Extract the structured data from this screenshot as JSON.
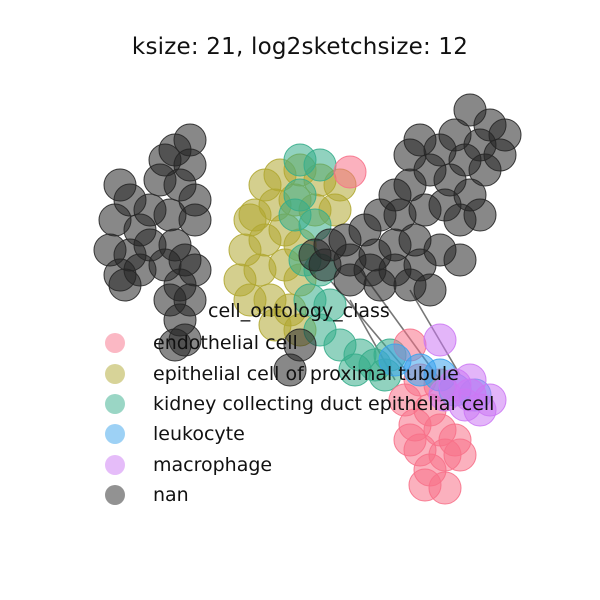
{
  "chart_data": {
    "type": "scatter",
    "title": "ksize: 21, log2sketchsize: 12",
    "xlabel": "",
    "ylabel": "",
    "axes_visible": false,
    "grid": false,
    "legend": {
      "title": "cell_ontology_class",
      "placement": "center",
      "entries": [
        {
          "label": "endothelial cell",
          "color": "#f77189"
        },
        {
          "label": "epithelial cell of proximal tubule",
          "color": "#b0a731"
        },
        {
          "label": "kidney collecting duct epithelial cell",
          "color": "#36ad8b"
        },
        {
          "label": "leukocyte",
          "color": "#3ba3ec"
        },
        {
          "label": "macrophage",
          "color": "#cc79f4"
        },
        {
          "label": "nan",
          "color": "#262626"
        }
      ]
    },
    "series": [
      {
        "name": "epithelial cell of proximal tubule",
        "color": "#b0a731",
        "points": [
          [
            265,
            185
          ],
          [
            280,
            175
          ],
          [
            300,
            170
          ],
          [
            320,
            180
          ],
          [
            340,
            185
          ],
          [
            255,
            215
          ],
          [
            275,
            205
          ],
          [
            295,
            200
          ],
          [
            315,
            210
          ],
          [
            335,
            210
          ],
          [
            245,
            250
          ],
          [
            265,
            240
          ],
          [
            285,
            230
          ],
          [
            300,
            245
          ],
          [
            240,
            280
          ],
          [
            260,
            270
          ],
          [
            285,
            265
          ],
          [
            300,
            280
          ],
          [
            250,
            300
          ],
          [
            270,
            300
          ],
          [
            290,
            310
          ],
          [
            275,
            325
          ],
          [
            300,
            330
          ],
          [
            250,
            220
          ]
        ]
      },
      {
        "name": "kidney collecting duct epithelial cell",
        "color": "#36ad8b",
        "points": [
          [
            300,
            160
          ],
          [
            320,
            165
          ],
          [
            295,
            215
          ],
          [
            315,
            225
          ],
          [
            305,
            260
          ],
          [
            320,
            270
          ],
          [
            310,
            300
          ],
          [
            330,
            305
          ],
          [
            320,
            330
          ],
          [
            340,
            345
          ],
          [
            360,
            355
          ],
          [
            375,
            365
          ],
          [
            390,
            355
          ],
          [
            355,
            370
          ],
          [
            385,
            375
          ],
          [
            300,
            195
          ]
        ]
      },
      {
        "name": "endothelial cell",
        "color": "#f77189",
        "points": [
          [
            350,
            172
          ],
          [
            410,
            345
          ],
          [
            420,
            380
          ],
          [
            440,
            385
          ],
          [
            405,
            400
          ],
          [
            430,
            410
          ],
          [
            415,
            425
          ],
          [
            440,
            430
          ],
          [
            455,
            440
          ],
          [
            420,
            450
          ],
          [
            445,
            455
          ],
          [
            430,
            470
          ],
          [
            425,
            485
          ],
          [
            445,
            488
          ],
          [
            410,
            440
          ],
          [
            460,
            455
          ]
        ]
      },
      {
        "name": "leukocyte",
        "color": "#3ba3ec",
        "points": [
          [
            395,
            360
          ],
          [
            420,
            370
          ],
          [
            440,
            375
          ],
          [
            455,
            390
          ],
          [
            475,
            395
          ]
        ]
      },
      {
        "name": "macrophage",
        "color": "#cc79f4",
        "points": [
          [
            440,
            340
          ],
          [
            455,
            385
          ],
          [
            470,
            395
          ],
          [
            480,
            410
          ],
          [
            465,
            405
          ],
          [
            445,
            395
          ],
          [
            490,
            400
          ],
          [
            470,
            380
          ]
        ]
      },
      {
        "name": "nan",
        "color": "#262626",
        "points": [
          [
            190,
            140
          ],
          [
            175,
            150
          ],
          [
            165,
            160
          ],
          [
            190,
            165
          ],
          [
            160,
            180
          ],
          [
            180,
            185
          ],
          [
            195,
            200
          ],
          [
            150,
            210
          ],
          [
            170,
            215
          ],
          [
            195,
            220
          ],
          [
            120,
            185
          ],
          [
            130,
            200
          ],
          [
            115,
            220
          ],
          [
            140,
            230
          ],
          [
            110,
            250
          ],
          [
            130,
            255
          ],
          [
            150,
            245
          ],
          [
            120,
            275
          ],
          [
            140,
            270
          ],
          [
            125,
            285
          ],
          [
            175,
            245
          ],
          [
            185,
            260
          ],
          [
            165,
            265
          ],
          [
            195,
            270
          ],
          [
            180,
            285
          ],
          [
            170,
            300
          ],
          [
            190,
            300
          ],
          [
            180,
            320
          ],
          [
            185,
            340
          ],
          [
            175,
            345
          ],
          [
            290,
            370
          ],
          [
            300,
            345
          ],
          [
            470,
            110
          ],
          [
            490,
            125
          ],
          [
            505,
            135
          ],
          [
            480,
            145
          ],
          [
            500,
            155
          ],
          [
            465,
            160
          ],
          [
            485,
            170
          ],
          [
            455,
            135
          ],
          [
            440,
            150
          ],
          [
            420,
            140
          ],
          [
            410,
            155
          ],
          [
            430,
            170
          ],
          [
            450,
            180
          ],
          [
            470,
            195
          ],
          [
            445,
            205
          ],
          [
            410,
            185
          ],
          [
            395,
            195
          ],
          [
            425,
            210
          ],
          [
            460,
            220
          ],
          [
            480,
            215
          ],
          [
            400,
            215
          ],
          [
            380,
            215
          ],
          [
            365,
            230
          ],
          [
            345,
            240
          ],
          [
            330,
            245
          ],
          [
            350,
            260
          ],
          [
            375,
            255
          ],
          [
            395,
            245
          ],
          [
            415,
            240
          ],
          [
            440,
            250
          ],
          [
            460,
            260
          ],
          [
            420,
            265
          ],
          [
            395,
            270
          ],
          [
            370,
            270
          ],
          [
            325,
            265
          ],
          [
            315,
            255
          ],
          [
            350,
            280
          ],
          [
            380,
            285
          ],
          [
            410,
            285
          ],
          [
            430,
            290
          ]
        ]
      }
    ],
    "connector_lines": [
      {
        "from": [
          330,
          280
        ],
        "to": [
          410,
          375
        ]
      },
      {
        "from": [
          360,
          270
        ],
        "to": [
          440,
          380
        ]
      },
      {
        "from": [
          410,
          290
        ],
        "to": [
          460,
          375
        ]
      },
      {
        "from": [
          350,
          300
        ],
        "to": [
          395,
          380
        ]
      }
    ]
  }
}
